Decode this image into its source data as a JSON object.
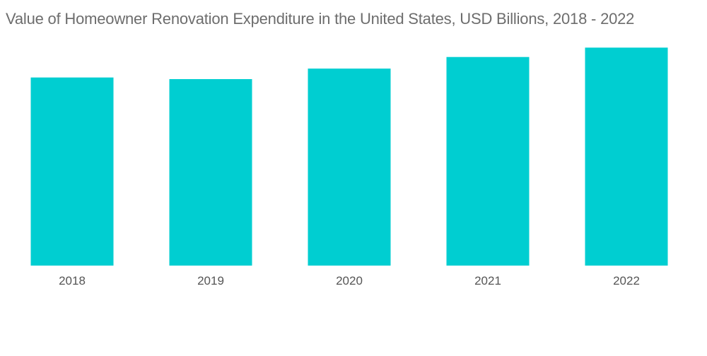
{
  "chart_data": {
    "type": "bar",
    "title": "Value of Homeowner Renovation Expenditure in the United States, USD Billions, 2018 - 2022",
    "xlabel": "",
    "ylabel": "",
    "categories": [
      "2018",
      "2019",
      "2020",
      "2021",
      "2022"
    ],
    "values": [
      340,
      337,
      356,
      377,
      394
    ],
    "ylim": [
      0,
      480
    ],
    "grid": false,
    "legend": "none",
    "colors": {
      "bar": "#00CED1"
    }
  }
}
